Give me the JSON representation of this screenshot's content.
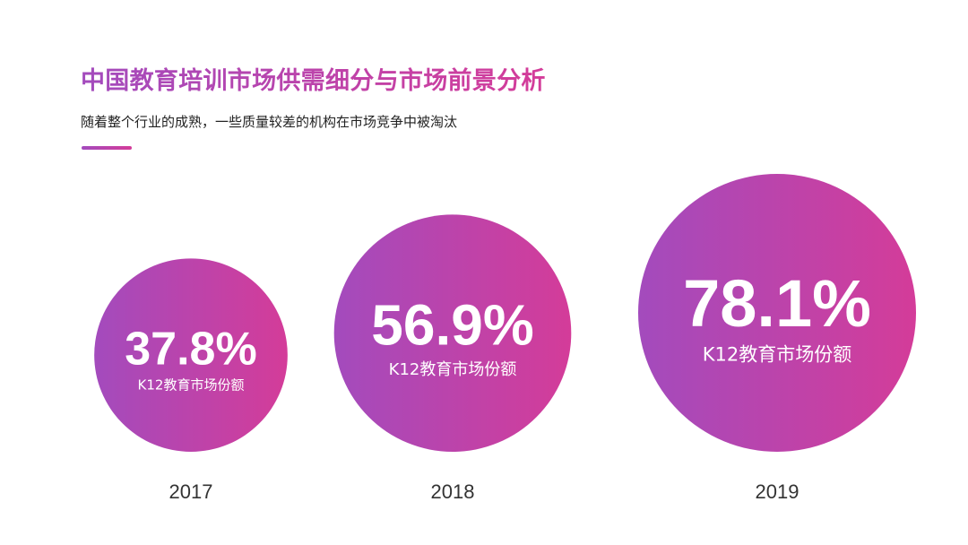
{
  "header": {
    "title": "中国教育培训市场供需细分与市场前景分析",
    "subtitle": "随着整个行业的成熟，一些质量较差的机构在市场竞争中被淘汰"
  },
  "colors": {
    "gradient_start": "#a34bbd",
    "gradient_end": "#d43c99",
    "year_text": "#333333",
    "subtitle_text": "#222222"
  },
  "chart_data": {
    "type": "bubble",
    "categories": [
      "2017",
      "2018",
      "2019"
    ],
    "series": [
      {
        "name": "K12教育市场份额",
        "values": [
          37.8,
          56.9,
          78.1
        ],
        "value_labels": [
          "37.8%",
          "56.9%",
          "78.1%"
        ],
        "unit": "%"
      }
    ],
    "bubble_label": "K12教育市场份额",
    "legend": "none",
    "grid": false
  }
}
